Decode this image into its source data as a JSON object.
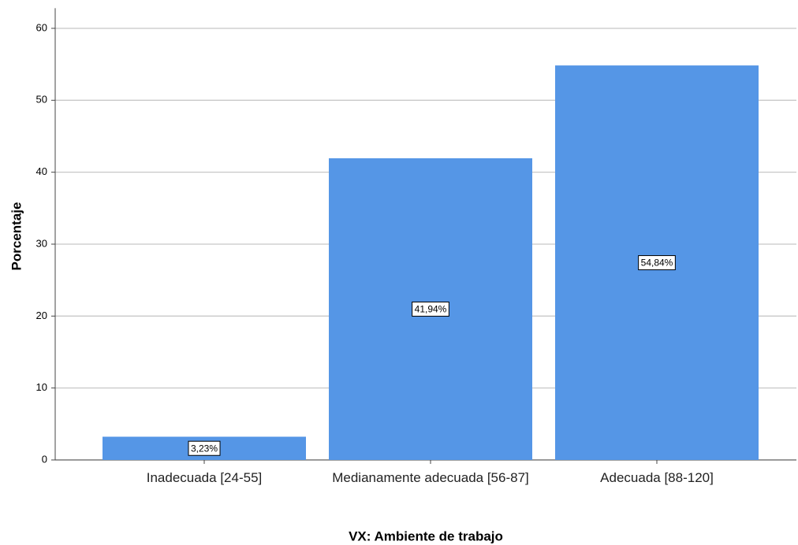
{
  "chart_data": {
    "type": "bar",
    "categories": [
      "Inadecuada [24-55]",
      "Medianamente adecuada [56-87]",
      "Adecuada [88-120]"
    ],
    "values": [
      3.23,
      41.94,
      54.84
    ],
    "value_labels": [
      "3,23%",
      "41,94%",
      "54,84%"
    ],
    "color": "#5596e6",
    "x_label": "VX: Ambiente de trabajo",
    "y_label": "Porcentaje",
    "ylim": [
      0,
      62.8
    ],
    "yticks": [
      0,
      10,
      20,
      30,
      40,
      50,
      60
    ],
    "grid": true
  }
}
